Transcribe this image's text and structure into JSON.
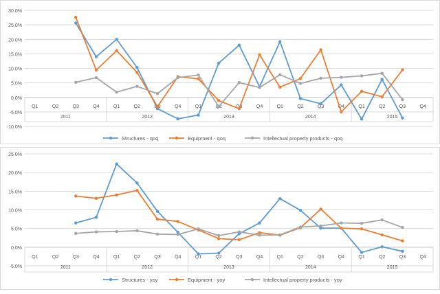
{
  "chart_data": [
    {
      "type": "line",
      "categories": [
        "Q1",
        "Q2",
        "Q3",
        "Q4",
        "Q1",
        "Q2",
        "Q3",
        "Q4",
        "Q1",
        "Q2",
        "Q3",
        "Q4",
        "Q1",
        "Q2",
        "Q3",
        "Q4",
        "Q1",
        "Q2",
        "Q3",
        "Q4"
      ],
      "years": [
        "2011",
        "2012",
        "2013",
        "2014",
        "2015"
      ],
      "ylim": [
        -10,
        30
      ],
      "yticks": [
        -10,
        -5,
        0,
        5,
        10,
        15,
        20,
        25,
        30
      ],
      "tick_labels": [
        "-10.0%",
        "-5.0%",
        "0.0%",
        "5.0%",
        "10.0%",
        "15.0%",
        "20.0%",
        "25.0%",
        "30.0%"
      ],
      "series": [
        {
          "name": "Structures - qoq",
          "color": "#5b9bd5",
          "values": [
            null,
            null,
            25.6,
            14.0,
            20.0,
            10.3,
            -3.9,
            -7.4,
            -6.1,
            11.8,
            18.0,
            3.7,
            19.2,
            -0.4,
            -2.2,
            4.3,
            -7.5,
            6.2,
            -7.1,
            null
          ]
        },
        {
          "name": "Equipment - qoq",
          "color": "#ed7d31",
          "values": [
            null,
            null,
            27.6,
            9.4,
            16.1,
            8.6,
            -3.2,
            7.1,
            6.4,
            -1.1,
            -3.9,
            14.7,
            3.5,
            6.5,
            16.4,
            -5.0,
            2.1,
            0.2,
            9.5,
            null
          ]
        },
        {
          "name": "Intellectual property products - qoq",
          "color": "#a5a5a5",
          "values": [
            null,
            null,
            5.2,
            6.8,
            1.8,
            3.8,
            1.3,
            6.8,
            7.7,
            -3.2,
            5.1,
            3.4,
            7.8,
            4.8,
            6.6,
            6.9,
            7.4,
            8.3,
            -0.8,
            null
          ]
        }
      ]
    },
    {
      "type": "line",
      "categories": [
        "Q1",
        "Q2",
        "Q3",
        "Q4",
        "Q1",
        "Q2",
        "Q3",
        "Q4",
        "Q1",
        "Q2",
        "Q3",
        "Q4",
        "Q1",
        "Q2",
        "Q3",
        "Q4",
        "Q1",
        "Q2",
        "Q3",
        "Q4"
      ],
      "years": [
        "2011",
        "2012",
        "2013",
        "2014",
        "2015"
      ],
      "ylim": [
        -5,
        25
      ],
      "yticks": [
        -5,
        0,
        5,
        10,
        15,
        20,
        25
      ],
      "tick_labels": [
        "-5.0%",
        "0.0%",
        "5.0%",
        "10.0%",
        "15.0%",
        "20.0%",
        "25.0%"
      ],
      "series": [
        {
          "name": "Structures - yoy",
          "color": "#5b9bd5",
          "values": [
            null,
            null,
            6.5,
            8.0,
            22.3,
            17.2,
            9.6,
            4.0,
            -1.8,
            -1.6,
            3.6,
            6.5,
            13.0,
            9.9,
            5.1,
            5.1,
            -1.4,
            0.1,
            -1.1,
            null
          ]
        },
        {
          "name": "Equipment - yoy",
          "color": "#ed7d31",
          "values": [
            null,
            null,
            13.7,
            13.1,
            14.0,
            15.2,
            7.5,
            6.9,
            4.6,
            2.3,
            2.0,
            3.9,
            3.2,
            5.2,
            10.2,
            5.1,
            4.9,
            3.3,
            1.7,
            null
          ]
        },
        {
          "name": "Intellectual property products - yoy",
          "color": "#a5a5a5",
          "values": [
            null,
            null,
            3.7,
            4.1,
            4.2,
            4.4,
            3.5,
            3.4,
            4.9,
            3.1,
            4.1,
            3.2,
            3.3,
            5.4,
            5.7,
            6.5,
            6.4,
            7.3,
            5.3,
            null
          ]
        }
      ]
    }
  ]
}
